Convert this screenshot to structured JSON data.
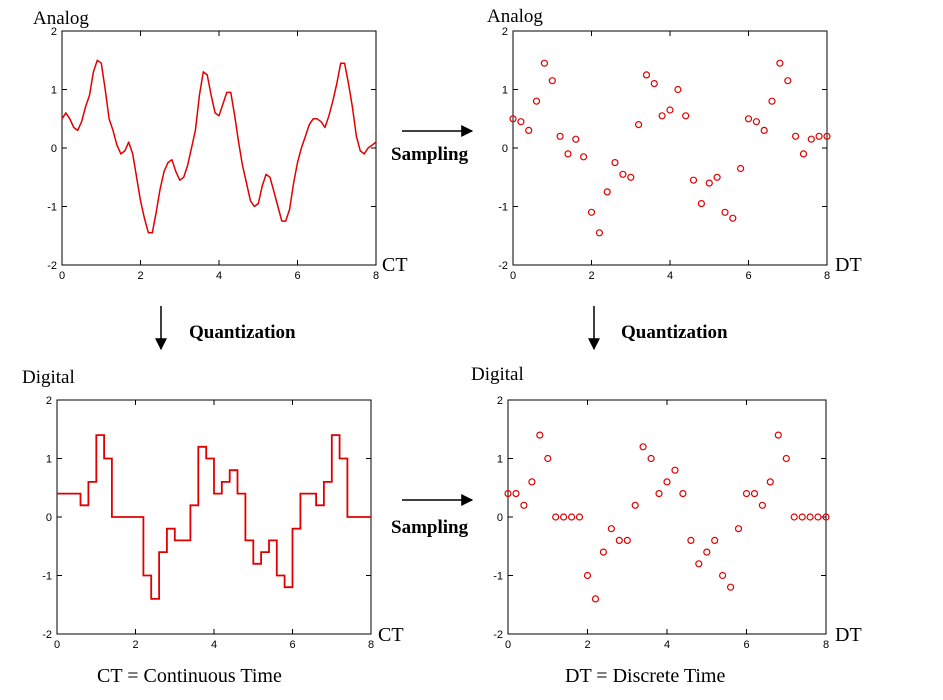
{
  "labels": {
    "analog": "Analog",
    "digital": "Digital",
    "sampling": "Sampling",
    "quantization": "Quantization",
    "ct": "CT",
    "dt": "DT",
    "ct_caption": "CT = Continuous Time",
    "dt_caption": "DT = Discrete Time"
  },
  "colors": {
    "signal": "#e00000",
    "axis": "#000000"
  },
  "chart_data": [
    {
      "id": "analog-ct",
      "type": "line",
      "title": "Analog",
      "xlabel": "CT",
      "xlim": [
        0,
        8
      ],
      "ylim": [
        -2,
        2
      ],
      "xticks": [
        "0",
        "2",
        "4",
        "6",
        "8"
      ],
      "yticks": [
        "2",
        "1",
        "0",
        "-1",
        "-2"
      ],
      "x": [
        0,
        0.1,
        0.2,
        0.3,
        0.4,
        0.5,
        0.6,
        0.7,
        0.8,
        0.9,
        1.0,
        1.1,
        1.2,
        1.3,
        1.4,
        1.5,
        1.6,
        1.7,
        1.8,
        1.9,
        2.0,
        2.1,
        2.2,
        2.3,
        2.4,
        2.5,
        2.6,
        2.7,
        2.8,
        2.9,
        3.0,
        3.1,
        3.2,
        3.3,
        3.4,
        3.5,
        3.6,
        3.7,
        3.8,
        3.9,
        4.0,
        4.1,
        4.2,
        4.3,
        4.4,
        4.5,
        4.6,
        4.7,
        4.8,
        4.9,
        5.0,
        5.1,
        5.2,
        5.3,
        5.4,
        5.5,
        5.6,
        5.7,
        5.8,
        5.9,
        6.0,
        6.1,
        6.2,
        6.3,
        6.4,
        6.5,
        6.6,
        6.7,
        6.8,
        6.9,
        7.0,
        7.1,
        7.2,
        7.3,
        7.4,
        7.5,
        7.6,
        7.7,
        7.8,
        7.9,
        8.0
      ],
      "y": [
        0.5,
        0.6,
        0.5,
        0.35,
        0.3,
        0.45,
        0.7,
        0.9,
        1.3,
        1.5,
        1.45,
        1.0,
        0.5,
        0.3,
        0.05,
        -0.1,
        -0.05,
        0.1,
        -0.1,
        -0.5,
        -0.9,
        -1.2,
        -1.45,
        -1.45,
        -1.1,
        -0.7,
        -0.4,
        -0.25,
        -0.2,
        -0.4,
        -0.55,
        -0.5,
        -0.3,
        0.0,
        0.3,
        0.9,
        1.3,
        1.25,
        0.9,
        0.6,
        0.55,
        0.75,
        0.95,
        0.95,
        0.55,
        0.1,
        -0.3,
        -0.6,
        -0.9,
        -1.0,
        -0.95,
        -0.65,
        -0.45,
        -0.5,
        -0.75,
        -1.0,
        -1.25,
        -1.25,
        -1.05,
        -0.6,
        -0.25,
        0.0,
        0.2,
        0.4,
        0.5,
        0.5,
        0.45,
        0.35,
        0.55,
        0.8,
        1.1,
        1.45,
        1.45,
        1.1,
        0.7,
        0.2,
        -0.05,
        -0.1,
        0.0,
        0.05,
        0.1
      ]
    },
    {
      "id": "sampled-dt",
      "type": "scatter",
      "title": "Analog",
      "xlabel": "DT",
      "xlim": [
        0,
        8
      ],
      "ylim": [
        -2,
        2
      ],
      "xticks": [
        "0",
        "2",
        "4",
        "6",
        "8"
      ],
      "yticks": [
        "2",
        "1",
        "0",
        "-1",
        "-2"
      ],
      "x": [
        0,
        0.2,
        0.4,
        0.6,
        0.8,
        1.0,
        1.2,
        1.4,
        1.6,
        1.8,
        2.0,
        2.2,
        2.4,
        2.6,
        2.8,
        3.0,
        3.2,
        3.4,
        3.6,
        3.8,
        4.0,
        4.2,
        4.4,
        4.6,
        4.8,
        5.0,
        5.2,
        5.4,
        5.6,
        5.8,
        6.0,
        6.2,
        6.4,
        6.6,
        6.8,
        7.0,
        7.2,
        7.4,
        7.6,
        7.8,
        8.0
      ],
      "y": [
        0.5,
        0.45,
        0.3,
        0.8,
        1.45,
        1.15,
        0.2,
        -0.1,
        0.15,
        -0.15,
        -1.1,
        -1.45,
        -0.75,
        -0.25,
        -0.45,
        -0.5,
        0.4,
        1.25,
        1.1,
        0.55,
        0.65,
        1.0,
        0.55,
        -0.55,
        -0.95,
        -0.6,
        -0.5,
        -1.1,
        -1.2,
        -0.35,
        0.5,
        0.45,
        0.3,
        0.8,
        1.45,
        1.15,
        0.2,
        -0.1,
        0.15,
        0.2,
        0.2
      ]
    },
    {
      "id": "digital-ct",
      "type": "line",
      "title": "Digital",
      "xlabel": "CT",
      "xlim": [
        0,
        8
      ],
      "ylim": [
        -2,
        2
      ],
      "xticks": [
        "0",
        "2",
        "4",
        "6",
        "8"
      ],
      "yticks": [
        "2",
        "1",
        "0",
        "-1",
        "-2"
      ],
      "step_x": [
        0,
        0.4,
        0.6,
        0.8,
        1.0,
        1.2,
        1.4,
        2.0,
        2.2,
        2.4,
        2.6,
        2.8,
        3.0,
        3.2,
        3.4,
        3.6,
        3.8,
        4.0,
        4.2,
        4.4,
        4.6,
        4.8,
        5.0,
        5.2,
        5.4,
        5.6,
        5.8,
        6.0,
        6.2,
        6.4,
        6.6,
        6.8,
        7.0,
        7.2,
        7.4,
        7.6,
        8.0
      ],
      "step_y": [
        0.4,
        0.4,
        0.2,
        0.6,
        1.4,
        1.0,
        0.0,
        0.0,
        -1.0,
        -1.4,
        -0.6,
        -0.2,
        -0.4,
        -0.4,
        0.2,
        1.2,
        1.0,
        0.4,
        0.6,
        0.8,
        0.4,
        -0.4,
        -0.8,
        -0.6,
        -0.4,
        -1.0,
        -1.2,
        -0.2,
        0.4,
        0.4,
        0.2,
        0.6,
        1.4,
        1.0,
        0.0,
        0.0,
        0.0
      ]
    },
    {
      "id": "digital-dt",
      "type": "scatter",
      "title": "Digital",
      "xlabel": "DT",
      "xlim": [
        0,
        8
      ],
      "ylim": [
        -2,
        2
      ],
      "xticks": [
        "0",
        "2",
        "4",
        "6",
        "8"
      ],
      "yticks": [
        "2",
        "1",
        "0",
        "-1",
        "-2"
      ],
      "x": [
        0,
        0.2,
        0.4,
        0.6,
        0.8,
        1.0,
        1.2,
        1.4,
        1.6,
        1.8,
        2.0,
        2.2,
        2.4,
        2.6,
        2.8,
        3.0,
        3.2,
        3.4,
        3.6,
        3.8,
        4.0,
        4.2,
        4.4,
        4.6,
        4.8,
        5.0,
        5.2,
        5.4,
        5.6,
        5.8,
        6.0,
        6.2,
        6.4,
        6.6,
        6.8,
        7.0,
        7.2,
        7.4,
        7.6,
        7.8,
        8.0
      ],
      "y": [
        0.4,
        0.4,
        0.2,
        0.6,
        1.4,
        1.0,
        0.0,
        0.0,
        0.0,
        0.0,
        -1.0,
        -1.4,
        -0.6,
        -0.2,
        -0.4,
        -0.4,
        0.2,
        1.2,
        1.0,
        0.4,
        0.6,
        0.8,
        0.4,
        -0.4,
        -0.8,
        -0.6,
        -0.4,
        -1.0,
        -1.2,
        -0.2,
        0.4,
        0.4,
        0.2,
        0.6,
        1.4,
        1.0,
        0.0,
        0.0,
        0.0,
        0.0,
        0.0
      ]
    }
  ]
}
